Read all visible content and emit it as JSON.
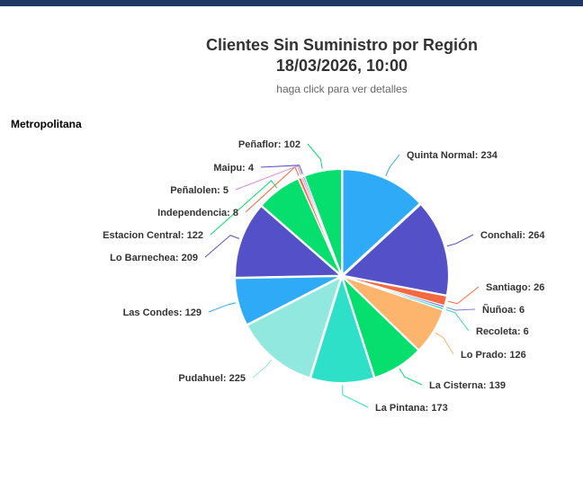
{
  "header": {
    "bar_color": "#1f3864"
  },
  "chart_data": {
    "type": "pie",
    "title_line1": "Clientes Sin Suministro por Región",
    "title_line2": "18/03/2026, 10:00",
    "subtitle": "haga click para ver detalles",
    "region_label": "Metropolitana",
    "slices": [
      {
        "name": "Quinta Normal",
        "value": 234,
        "color": "#2eaaf7"
      },
      {
        "name": "Conchali",
        "value": 264,
        "color": "#5451c8"
      },
      {
        "name": "Santiago",
        "value": 26,
        "color": "#f4693f"
      },
      {
        "name": "Ñuñoa",
        "value": 6,
        "color": "#7c7fd9"
      },
      {
        "name": "Recoleta",
        "value": 6,
        "color": "#3fd5c8"
      },
      {
        "name": "Lo Prado",
        "value": 126,
        "color": "#fdb56e"
      },
      {
        "name": "La Cisterna",
        "value": 139,
        "color": "#06df6e"
      },
      {
        "name": "La Pintana",
        "value": 173,
        "color": "#2fe0c8"
      },
      {
        "name": "Pudahuel",
        "value": 225,
        "color": "#91e8df"
      },
      {
        "name": "Las Condes",
        "value": 129,
        "color": "#2eaaf7"
      },
      {
        "name": "Lo Barnechea",
        "value": 209,
        "color": "#5451c8"
      },
      {
        "name": "Estacion Central",
        "value": 122,
        "color": "#06df6e"
      },
      {
        "name": "Independencia",
        "value": 8,
        "color": "#f4693f"
      },
      {
        "name": "Peñalolen",
        "value": 5,
        "color": "#d58ad8"
      },
      {
        "name": "Maipu",
        "value": 4,
        "color": "#5451c8"
      },
      {
        "name": "Peñaflor",
        "value": 102,
        "color": "#06df6e"
      }
    ]
  }
}
